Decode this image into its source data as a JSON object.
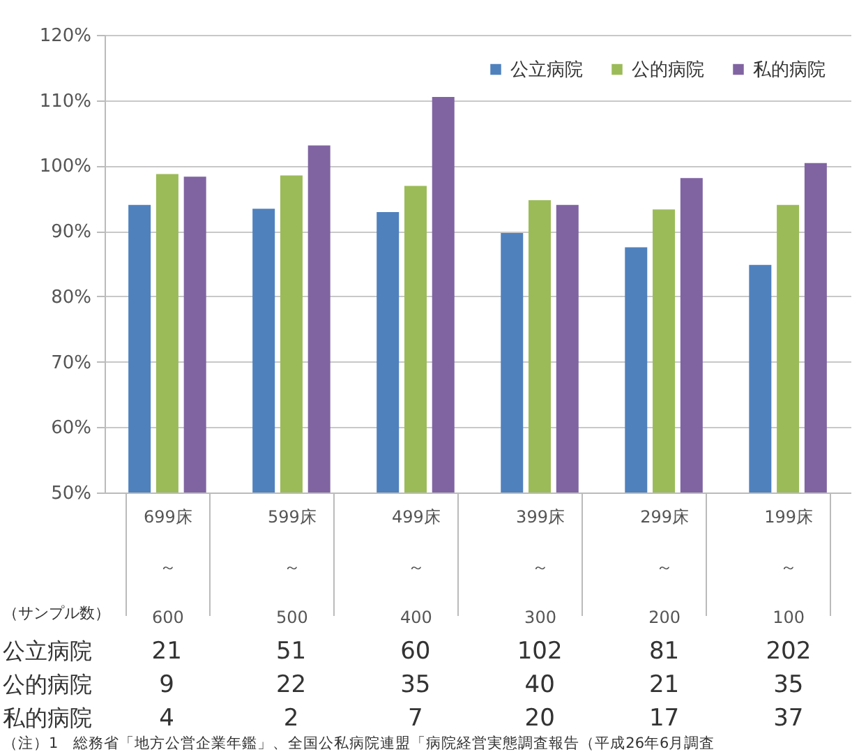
{
  "chart_data": {
    "type": "bar",
    "categories": [
      "699床～600",
      "599床～500",
      "499床～400",
      "399床～300",
      "299床～200",
      "199床～100"
    ],
    "series": [
      {
        "name": "公立病院",
        "color": "#4f81bd",
        "values": [
          94.0,
          93.4,
          92.9,
          89.7,
          87.5,
          84.8
        ]
      },
      {
        "name": "公的病院",
        "color": "#9bbb59",
        "values": [
          98.7,
          98.5,
          96.9,
          94.7,
          93.3,
          94.0
        ]
      },
      {
        "name": "私的病院",
        "color": "#8064a2",
        "values": [
          98.3,
          103.1,
          110.5,
          94.0,
          98.1,
          100.4
        ]
      }
    ],
    "ylim": [
      50,
      120
    ],
    "yticks": [
      {
        "value": 50,
        "label": "50%"
      },
      {
        "value": 60,
        "label": "60%"
      },
      {
        "value": 70,
        "label": "70%"
      },
      {
        "value": 80,
        "label": "80%"
      },
      {
        "value": 90,
        "label": "90%"
      },
      {
        "value": 100,
        "label": "100%"
      },
      {
        "value": 110,
        "label": "110%"
      },
      {
        "value": 120,
        "label": "120%"
      }
    ],
    "grid": "y",
    "legend": "top right",
    "annotations": [
      "（サンプル数）",
      "公立病院 21 51 60 102 81 202",
      "公的病院 9 22 35 40 21 35",
      "私的病院 4 2 7 20 17 37",
      "（注）1　総務省「地方公営企業年鑑」、全国公私病院連盟「病院経営実態調査報告（平成26年6月調査"
    ]
  }
}
